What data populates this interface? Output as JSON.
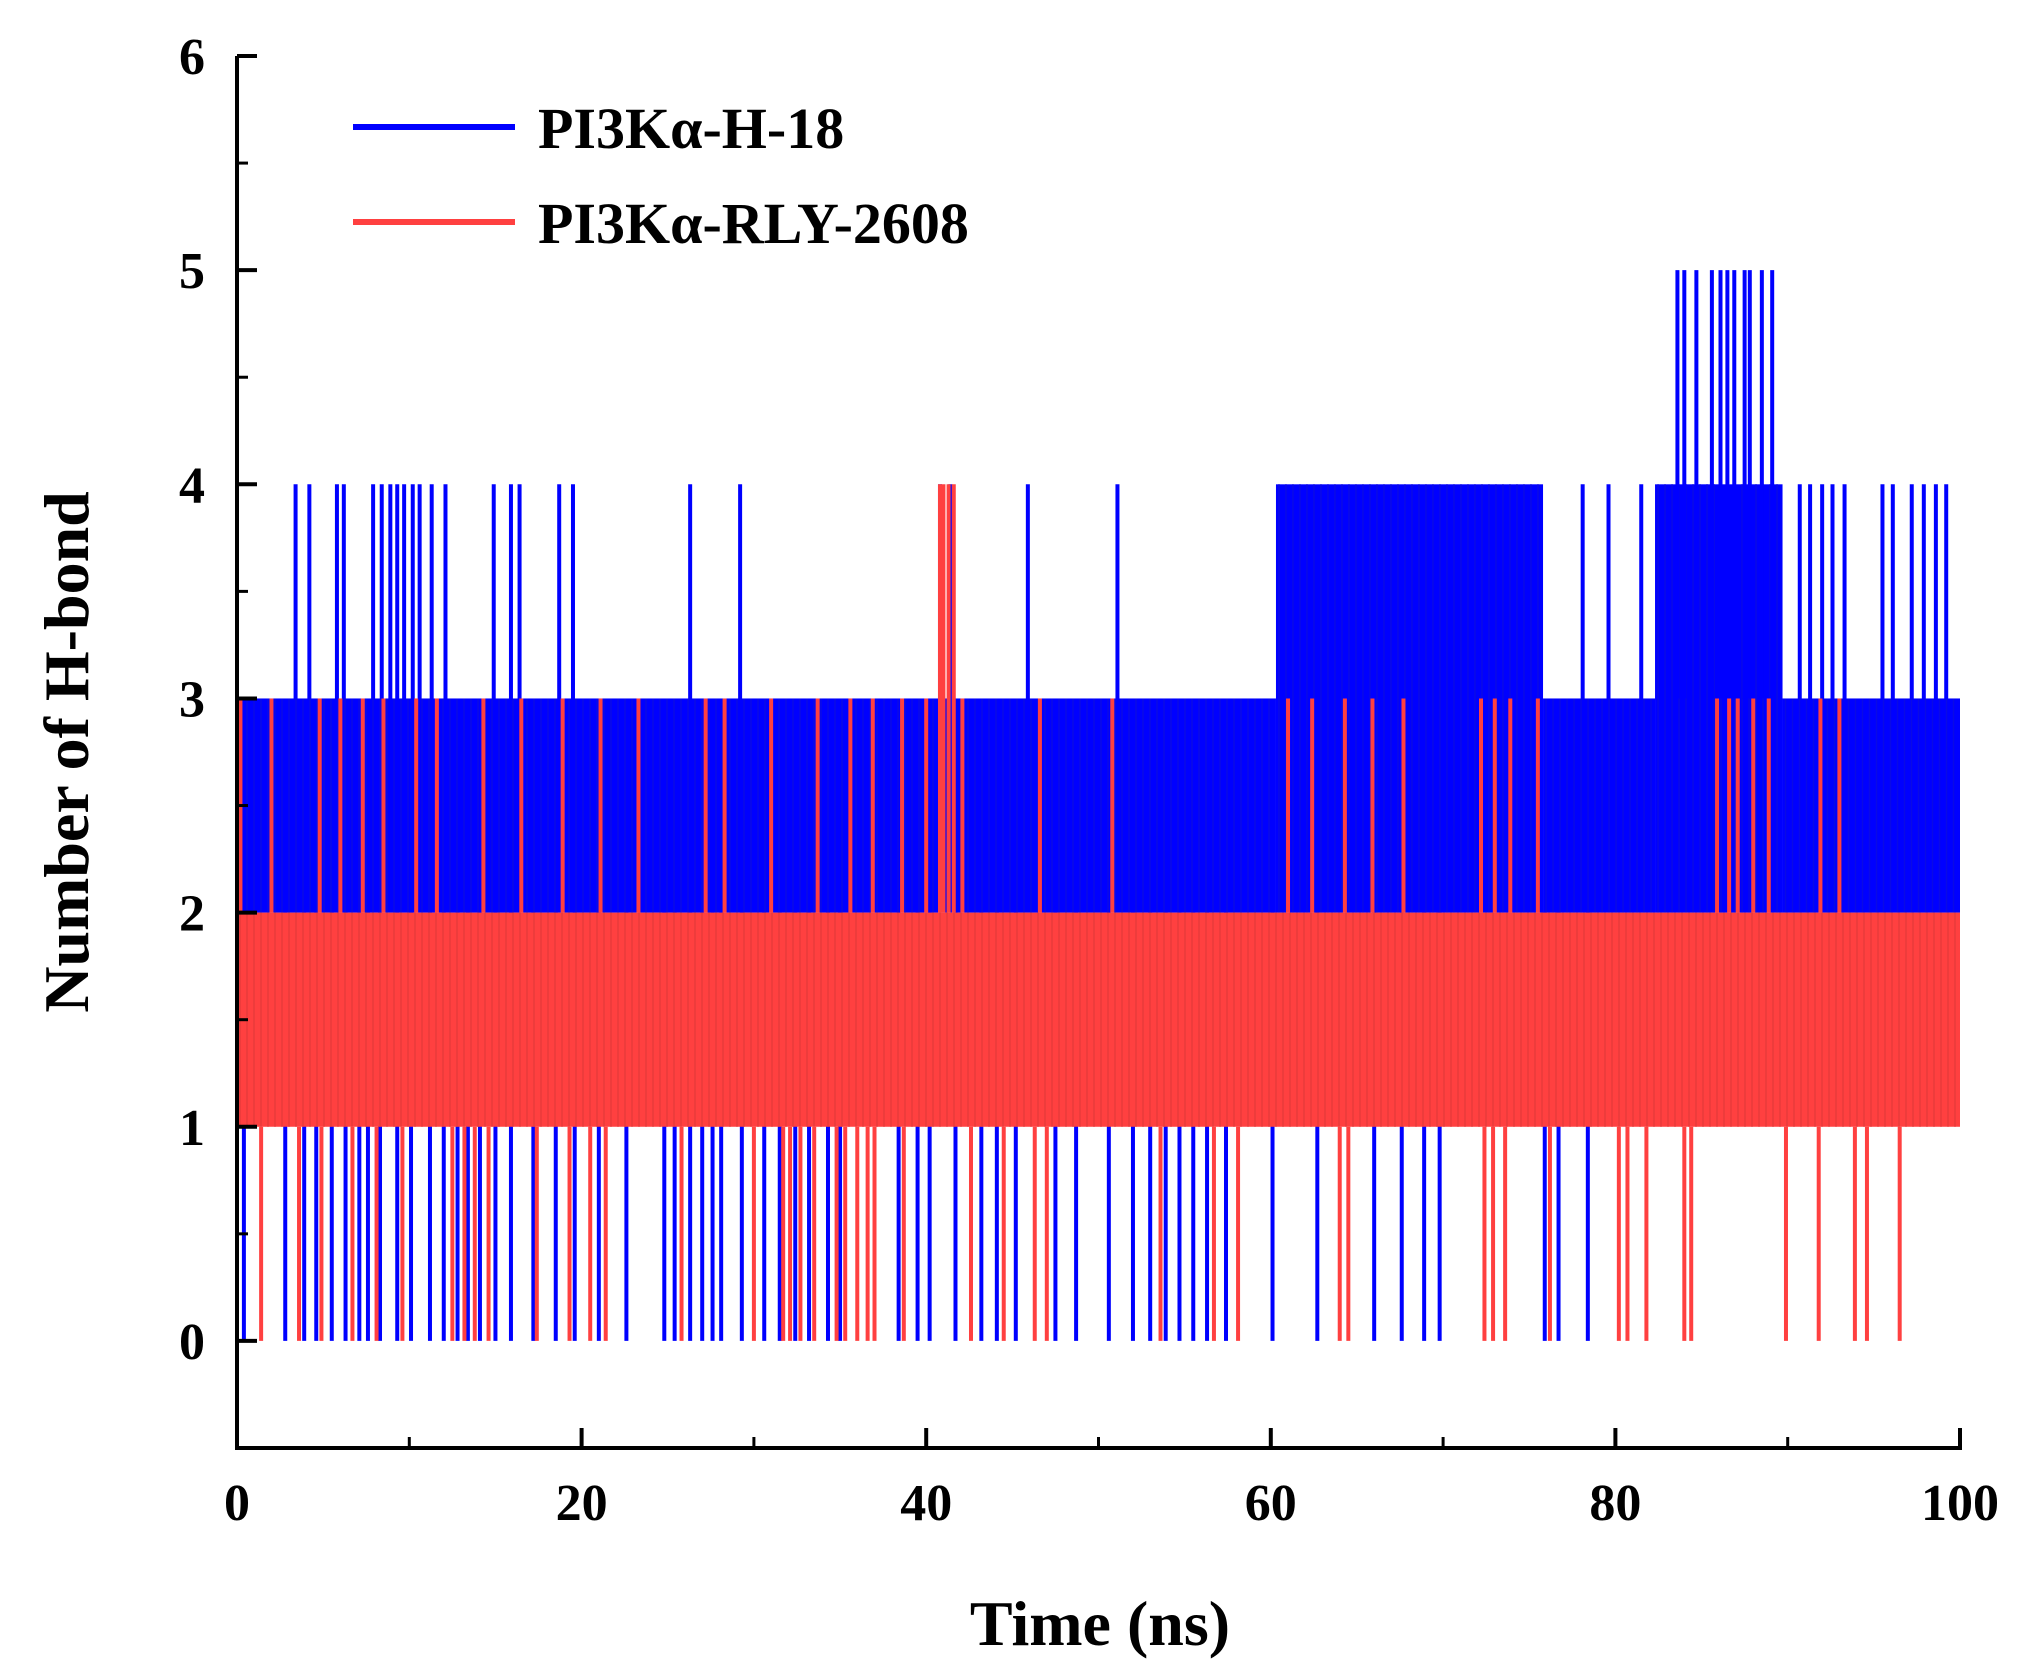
{
  "chart_data": {
    "type": "line",
    "title": "",
    "xlabel": "Time (ns)",
    "ylabel": "Number of H-bond",
    "xlim": [
      0,
      100
    ],
    "ylim": [
      -0.5,
      6
    ],
    "xticks": [
      0,
      20,
      40,
      60,
      80,
      100
    ],
    "xticks_minor": [
      10,
      30,
      50,
      70,
      90
    ],
    "yticks": [
      0,
      1,
      2,
      3,
      4,
      5,
      6
    ],
    "grid": false,
    "legend_position": "top-left",
    "series": [
      {
        "name": "PI3Kα-H-18",
        "color": "#0000FF",
        "baseline_low": 2,
        "baseline_high": 3,
        "segments": [
          {
            "x0": 0.0,
            "x1": 60.3,
            "low": 2,
            "high": 3
          },
          {
            "x0": 60.3,
            "x1": 75.8,
            "low": 2,
            "high": 4
          },
          {
            "x0": 75.8,
            "x1": 82.3,
            "low": 2,
            "high": 3
          },
          {
            "x0": 82.3,
            "x1": 89.7,
            "low": 2,
            "high": 4
          },
          {
            "x0": 89.7,
            "x1": 100.0,
            "low": 2,
            "high": 3
          }
        ],
        "spikes_high": [
          {
            "x": 3.4,
            "y": 4
          },
          {
            "x": 4.2,
            "y": 4
          },
          {
            "x": 5.8,
            "y": 4
          },
          {
            "x": 6.2,
            "y": 4
          },
          {
            "x": 7.9,
            "y": 4
          },
          {
            "x": 8.4,
            "y": 4
          },
          {
            "x": 8.9,
            "y": 4
          },
          {
            "x": 9.3,
            "y": 4
          },
          {
            "x": 9.7,
            "y": 4
          },
          {
            "x": 10.2,
            "y": 4
          },
          {
            "x": 10.6,
            "y": 4
          },
          {
            "x": 11.3,
            "y": 4
          },
          {
            "x": 12.1,
            "y": 4
          },
          {
            "x": 14.9,
            "y": 4
          },
          {
            "x": 15.9,
            "y": 4
          },
          {
            "x": 16.4,
            "y": 4
          },
          {
            "x": 18.7,
            "y": 4
          },
          {
            "x": 19.5,
            "y": 4
          },
          {
            "x": 26.3,
            "y": 4
          },
          {
            "x": 29.2,
            "y": 4
          },
          {
            "x": 40.8,
            "y": 4
          },
          {
            "x": 41.4,
            "y": 4
          },
          {
            "x": 45.9,
            "y": 4
          },
          {
            "x": 51.1,
            "y": 4
          },
          {
            "x": 78.1,
            "y": 4
          },
          {
            "x": 79.6,
            "y": 4
          },
          {
            "x": 81.5,
            "y": 4
          },
          {
            "x": 83.6,
            "y": 5
          },
          {
            "x": 84.0,
            "y": 5
          },
          {
            "x": 84.7,
            "y": 5
          },
          {
            "x": 85.6,
            "y": 5
          },
          {
            "x": 86.1,
            "y": 5
          },
          {
            "x": 86.5,
            "y": 5
          },
          {
            "x": 86.9,
            "y": 5
          },
          {
            "x": 87.5,
            "y": 5
          },
          {
            "x": 87.8,
            "y": 5
          },
          {
            "x": 88.5,
            "y": 5
          },
          {
            "x": 89.1,
            "y": 5
          },
          {
            "x": 90.7,
            "y": 4
          },
          {
            "x": 91.3,
            "y": 4
          },
          {
            "x": 92.0,
            "y": 4
          },
          {
            "x": 92.6,
            "y": 4
          },
          {
            "x": 93.3,
            "y": 4
          },
          {
            "x": 95.5,
            "y": 4
          },
          {
            "x": 96.1,
            "y": 4
          },
          {
            "x": 97.2,
            "y": 4
          },
          {
            "x": 97.9,
            "y": 4
          },
          {
            "x": 98.6,
            "y": 4
          },
          {
            "x": 99.2,
            "y": 4
          }
        ],
        "spikes_low": [
          {
            "x": 0.4,
            "y": 0
          },
          {
            "x": 2.8,
            "y": 0
          },
          {
            "x": 3.9,
            "y": 0
          },
          {
            "x": 4.6,
            "y": 0
          },
          {
            "x": 5.5,
            "y": 0
          },
          {
            "x": 6.3,
            "y": 0
          },
          {
            "x": 7.1,
            "y": 0
          },
          {
            "x": 7.6,
            "y": 0
          },
          {
            "x": 8.3,
            "y": 0
          },
          {
            "x": 9.3,
            "y": 0
          },
          {
            "x": 10.1,
            "y": 0
          },
          {
            "x": 11.2,
            "y": 0
          },
          {
            "x": 12.0,
            "y": 0
          },
          {
            "x": 12.8,
            "y": 0
          },
          {
            "x": 13.4,
            "y": 0
          },
          {
            "x": 14.1,
            "y": 0
          },
          {
            "x": 15.0,
            "y": 0
          },
          {
            "x": 15.9,
            "y": 0
          },
          {
            "x": 17.2,
            "y": 0
          },
          {
            "x": 18.5,
            "y": 0
          },
          {
            "x": 19.6,
            "y": 0
          },
          {
            "x": 21.0,
            "y": 0
          },
          {
            "x": 22.6,
            "y": 0
          },
          {
            "x": 24.8,
            "y": 0
          },
          {
            "x": 25.4,
            "y": 0
          },
          {
            "x": 26.3,
            "y": 0
          },
          {
            "x": 27.0,
            "y": 0
          },
          {
            "x": 27.6,
            "y": 0
          },
          {
            "x": 28.1,
            "y": 0
          },
          {
            "x": 29.3,
            "y": 0
          },
          {
            "x": 30.6,
            "y": 0
          },
          {
            "x": 31.5,
            "y": 0
          },
          {
            "x": 32.4,
            "y": 0
          },
          {
            "x": 33.2,
            "y": 0
          },
          {
            "x": 34.3,
            "y": 0
          },
          {
            "x": 35.0,
            "y": 0
          },
          {
            "x": 38.4,
            "y": 0
          },
          {
            "x": 39.5,
            "y": 0
          },
          {
            "x": 40.2,
            "y": 0
          },
          {
            "x": 41.7,
            "y": 0
          },
          {
            "x": 43.2,
            "y": 0
          },
          {
            "x": 44.1,
            "y": 0
          },
          {
            "x": 45.2,
            "y": 0
          },
          {
            "x": 47.5,
            "y": 0
          },
          {
            "x": 48.7,
            "y": 0
          },
          {
            "x": 50.6,
            "y": 0
          },
          {
            "x": 52.0,
            "y": 0
          },
          {
            "x": 53.0,
            "y": 0
          },
          {
            "x": 53.9,
            "y": 0
          },
          {
            "x": 54.7,
            "y": 0
          },
          {
            "x": 55.5,
            "y": 0
          },
          {
            "x": 56.3,
            "y": 0
          },
          {
            "x": 57.4,
            "y": 0
          },
          {
            "x": 60.1,
            "y": 0
          },
          {
            "x": 62.7,
            "y": 0
          },
          {
            "x": 66.0,
            "y": 0
          },
          {
            "x": 67.6,
            "y": 0
          },
          {
            "x": 68.9,
            "y": 0
          },
          {
            "x": 69.8,
            "y": 0
          },
          {
            "x": 75.9,
            "y": 0
          },
          {
            "x": 76.7,
            "y": 0
          },
          {
            "x": 78.4,
            "y": 0
          }
        ]
      },
      {
        "name": "PI3Kα-RLY-2608",
        "color": "#FF4040",
        "baseline_low": 1,
        "baseline_high": 2,
        "segments": [
          {
            "x0": 0.0,
            "x1": 100.0,
            "low": 1,
            "high": 2
          }
        ],
        "spikes_high": [
          {
            "x": 0.2,
            "y": 3
          },
          {
            "x": 2.0,
            "y": 3
          },
          {
            "x": 4.8,
            "y": 3
          },
          {
            "x": 6.0,
            "y": 3
          },
          {
            "x": 7.3,
            "y": 3
          },
          {
            "x": 8.5,
            "y": 3
          },
          {
            "x": 10.4,
            "y": 3
          },
          {
            "x": 11.6,
            "y": 3
          },
          {
            "x": 14.3,
            "y": 3
          },
          {
            "x": 16.5,
            "y": 3
          },
          {
            "x": 18.9,
            "y": 3
          },
          {
            "x": 21.1,
            "y": 3
          },
          {
            "x": 23.3,
            "y": 3
          },
          {
            "x": 27.2,
            "y": 3
          },
          {
            "x": 28.3,
            "y": 3
          },
          {
            "x": 31.0,
            "y": 3
          },
          {
            "x": 33.7,
            "y": 3
          },
          {
            "x": 35.6,
            "y": 3
          },
          {
            "x": 36.9,
            "y": 3
          },
          {
            "x": 38.6,
            "y": 3
          },
          {
            "x": 40.0,
            "y": 3
          },
          {
            "x": 40.8,
            "y": 4
          },
          {
            "x": 41.0,
            "y": 4
          },
          {
            "x": 41.3,
            "y": 4
          },
          {
            "x": 41.6,
            "y": 4
          },
          {
            "x": 42.1,
            "y": 3
          },
          {
            "x": 46.6,
            "y": 3
          },
          {
            "x": 50.8,
            "y": 3
          },
          {
            "x": 61.0,
            "y": 3
          },
          {
            "x": 62.4,
            "y": 3
          },
          {
            "x": 64.3,
            "y": 3
          },
          {
            "x": 65.9,
            "y": 3
          },
          {
            "x": 67.7,
            "y": 3
          },
          {
            "x": 72.2,
            "y": 3
          },
          {
            "x": 73.0,
            "y": 3
          },
          {
            "x": 73.9,
            "y": 3
          },
          {
            "x": 75.5,
            "y": 3
          },
          {
            "x": 85.9,
            "y": 3
          },
          {
            "x": 86.6,
            "y": 3
          },
          {
            "x": 87.1,
            "y": 3
          },
          {
            "x": 88.0,
            "y": 3
          },
          {
            "x": 88.9,
            "y": 3
          },
          {
            "x": 91.9,
            "y": 3
          },
          {
            "x": 93.0,
            "y": 3
          }
        ],
        "spikes_low": [
          {
            "x": 1.4,
            "y": 0
          },
          {
            "x": 3.6,
            "y": 0
          },
          {
            "x": 4.9,
            "y": 0
          },
          {
            "x": 6.7,
            "y": 0
          },
          {
            "x": 8.1,
            "y": 0
          },
          {
            "x": 9.6,
            "y": 0
          },
          {
            "x": 12.5,
            "y": 0
          },
          {
            "x": 13.2,
            "y": 0
          },
          {
            "x": 13.8,
            "y": 0
          },
          {
            "x": 14.6,
            "y": 0
          },
          {
            "x": 17.4,
            "y": 0
          },
          {
            "x": 19.3,
            "y": 0
          },
          {
            "x": 20.5,
            "y": 0
          },
          {
            "x": 21.4,
            "y": 0
          },
          {
            "x": 25.8,
            "y": 0
          },
          {
            "x": 30.0,
            "y": 0
          },
          {
            "x": 31.7,
            "y": 0
          },
          {
            "x": 32.1,
            "y": 0
          },
          {
            "x": 32.7,
            "y": 0
          },
          {
            "x": 33.5,
            "y": 0
          },
          {
            "x": 34.8,
            "y": 0
          },
          {
            "x": 35.3,
            "y": 0
          },
          {
            "x": 36.0,
            "y": 0
          },
          {
            "x": 36.6,
            "y": 0
          },
          {
            "x": 37.0,
            "y": 0
          },
          {
            "x": 38.7,
            "y": 0
          },
          {
            "x": 42.6,
            "y": 0
          },
          {
            "x": 44.5,
            "y": 0
          },
          {
            "x": 46.3,
            "y": 0
          },
          {
            "x": 47.0,
            "y": 0
          },
          {
            "x": 53.6,
            "y": 0
          },
          {
            "x": 56.7,
            "y": 0
          },
          {
            "x": 58.1,
            "y": 0
          },
          {
            "x": 64.0,
            "y": 0
          },
          {
            "x": 64.5,
            "y": 0
          },
          {
            "x": 72.4,
            "y": 0
          },
          {
            "x": 72.9,
            "y": 0
          },
          {
            "x": 73.6,
            "y": 0
          },
          {
            "x": 76.2,
            "y": 0
          },
          {
            "x": 80.2,
            "y": 0
          },
          {
            "x": 80.7,
            "y": 0
          },
          {
            "x": 81.8,
            "y": 0
          },
          {
            "x": 84.0,
            "y": 0
          },
          {
            "x": 84.4,
            "y": 0
          },
          {
            "x": 89.9,
            "y": 0
          },
          {
            "x": 91.8,
            "y": 0
          },
          {
            "x": 93.9,
            "y": 0
          },
          {
            "x": 94.6,
            "y": 0
          },
          {
            "x": 96.5,
            "y": 0
          }
        ]
      }
    ]
  }
}
